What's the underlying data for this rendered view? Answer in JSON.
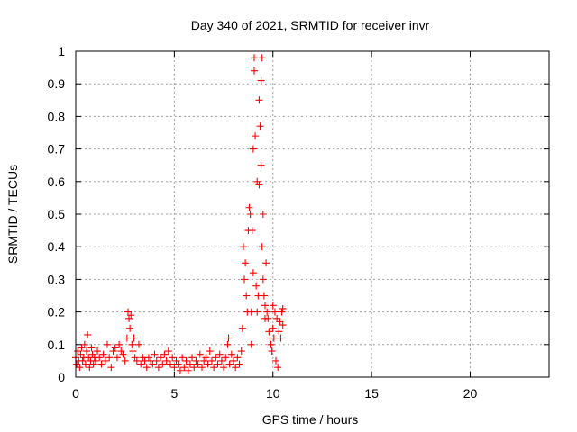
{
  "chart_data": {
    "type": "scatter",
    "title": "Day 340 of 2021, SRMTID for receiver invr",
    "xlabel": "GPS time / hours",
    "ylabel": "SRMTID / TECUs",
    "xlim": [
      0,
      24
    ],
    "ylim": [
      0,
      1
    ],
    "xticks": [
      0,
      5,
      10,
      15,
      20
    ],
    "yticks": [
      0,
      0.1,
      0.2,
      0.3,
      0.4,
      0.5,
      0.6,
      0.7,
      0.8,
      0.9,
      1
    ],
    "grid": true,
    "marker": "plus",
    "series": [
      {
        "color": "#ff0000",
        "points": [
          [
            0.0,
            0.06
          ],
          [
            0.05,
            0.04
          ],
          [
            0.1,
            0.08
          ],
          [
            0.15,
            0.05
          ],
          [
            0.2,
            0.03
          ],
          [
            0.25,
            0.07
          ],
          [
            0.3,
            0.09
          ],
          [
            0.35,
            0.05
          ],
          [
            0.4,
            0.06
          ],
          [
            0.45,
            0.1
          ],
          [
            0.5,
            0.04
          ],
          [
            0.55,
            0.08
          ],
          [
            0.6,
            0.13
          ],
          [
            0.65,
            0.06
          ],
          [
            0.7,
            0.03
          ],
          [
            0.75,
            0.05
          ],
          [
            0.8,
            0.09
          ],
          [
            0.85,
            0.07
          ],
          [
            0.9,
            0.04
          ],
          [
            0.95,
            0.06
          ],
          [
            1.0,
            0.05
          ],
          [
            1.1,
            0.08
          ],
          [
            1.2,
            0.06
          ],
          [
            1.3,
            0.04
          ],
          [
            1.4,
            0.07
          ],
          [
            1.5,
            0.05
          ],
          [
            1.6,
            0.1
          ],
          [
            1.7,
            0.06
          ],
          [
            1.8,
            0.03
          ],
          [
            1.9,
            0.08
          ],
          [
            2.0,
            0.09
          ],
          [
            2.1,
            0.06
          ],
          [
            2.2,
            0.1
          ],
          [
            2.3,
            0.08
          ],
          [
            2.4,
            0.07
          ],
          [
            2.5,
            0.05
          ],
          [
            2.6,
            0.12
          ],
          [
            2.65,
            0.2
          ],
          [
            2.7,
            0.18
          ],
          [
            2.75,
            0.15
          ],
          [
            2.8,
            0.19
          ],
          [
            2.85,
            0.1
          ],
          [
            2.9,
            0.08
          ],
          [
            2.95,
            0.12
          ],
          [
            3.0,
            0.06
          ],
          [
            3.1,
            0.05
          ],
          [
            3.2,
            0.1
          ],
          [
            3.3,
            0.04
          ],
          [
            3.4,
            0.06
          ],
          [
            3.5,
            0.05
          ],
          [
            3.6,
            0.03
          ],
          [
            3.7,
            0.06
          ],
          [
            3.8,
            0.05
          ],
          [
            3.9,
            0.04
          ],
          [
            4.0,
            0.07
          ],
          [
            4.1,
            0.05
          ],
          [
            4.2,
            0.03
          ],
          [
            4.3,
            0.06
          ],
          [
            4.4,
            0.04
          ],
          [
            4.5,
            0.07
          ],
          [
            4.6,
            0.05
          ],
          [
            4.7,
            0.08
          ],
          [
            4.8,
            0.04
          ],
          [
            4.9,
            0.06
          ],
          [
            5.0,
            0.03
          ],
          [
            5.1,
            0.05
          ],
          [
            5.2,
            0.04
          ],
          [
            5.3,
            0.02
          ],
          [
            5.4,
            0.06
          ],
          [
            5.5,
            0.03
          ],
          [
            5.6,
            0.05
          ],
          [
            5.7,
            0.02
          ],
          [
            5.8,
            0.04
          ],
          [
            5.9,
            0.06
          ],
          [
            6.0,
            0.03
          ],
          [
            6.1,
            0.05
          ],
          [
            6.2,
            0.04
          ],
          [
            6.3,
            0.07
          ],
          [
            6.4,
            0.03
          ],
          [
            6.5,
            0.05
          ],
          [
            6.6,
            0.06
          ],
          [
            6.7,
            0.04
          ],
          [
            6.8,
            0.08
          ],
          [
            6.9,
            0.05
          ],
          [
            7.0,
            0.03
          ],
          [
            7.1,
            0.06
          ],
          [
            7.2,
            0.04
          ],
          [
            7.3,
            0.07
          ],
          [
            7.4,
            0.05
          ],
          [
            7.5,
            0.03
          ],
          [
            7.6,
            0.06
          ],
          [
            7.7,
            0.1
          ],
          [
            7.75,
            0.12
          ],
          [
            7.8,
            0.04
          ],
          [
            7.9,
            0.07
          ],
          [
            8.0,
            0.05
          ],
          [
            8.1,
            0.03
          ],
          [
            8.2,
            0.06
          ],
          [
            8.3,
            0.04
          ],
          [
            8.4,
            0.08
          ],
          [
            8.45,
            0.15
          ],
          [
            8.5,
            0.4
          ],
          [
            8.55,
            0.3
          ],
          [
            8.6,
            0.35
          ],
          [
            8.65,
            0.25
          ],
          [
            8.7,
            0.2
          ],
          [
            8.75,
            0.45
          ],
          [
            8.8,
            0.52
          ],
          [
            8.85,
            0.5
          ],
          [
            8.9,
            0.2
          ],
          [
            8.9,
            0.1
          ],
          [
            8.95,
            0.45
          ],
          [
            9.0,
            0.32
          ],
          [
            9.0,
            0.7
          ],
          [
            9.05,
            0.94
          ],
          [
            9.05,
            0.98
          ],
          [
            9.1,
            0.74
          ],
          [
            9.15,
            0.28
          ],
          [
            9.2,
            0.6
          ],
          [
            9.2,
            0.2
          ],
          [
            9.25,
            0.25
          ],
          [
            9.3,
            0.59
          ],
          [
            9.3,
            0.85
          ],
          [
            9.35,
            0.77
          ],
          [
            9.4,
            0.91
          ],
          [
            9.4,
            0.65
          ],
          [
            9.45,
            0.98
          ],
          [
            9.45,
            0.4
          ],
          [
            9.5,
            0.5
          ],
          [
            9.5,
            0.3
          ],
          [
            9.55,
            0.25
          ],
          [
            9.6,
            0.22
          ],
          [
            9.6,
            0.18
          ],
          [
            9.65,
            0.35
          ],
          [
            9.7,
            0.2
          ],
          [
            9.75,
            0.18
          ],
          [
            9.8,
            0.14
          ],
          [
            9.85,
            0.12
          ],
          [
            9.9,
            0.1
          ],
          [
            9.95,
            0.08
          ],
          [
            10.0,
            0.22
          ],
          [
            10.0,
            0.15
          ],
          [
            10.05,
            0.12
          ],
          [
            10.1,
            0.2
          ],
          [
            10.15,
            0.05
          ],
          [
            10.2,
            0.18
          ],
          [
            10.25,
            0.03
          ],
          [
            10.3,
            0.14
          ],
          [
            10.35,
            0.17
          ],
          [
            10.4,
            0.12
          ],
          [
            10.45,
            0.2
          ],
          [
            10.5,
            0.16
          ],
          [
            10.5,
            0.21
          ]
        ]
      }
    ]
  }
}
